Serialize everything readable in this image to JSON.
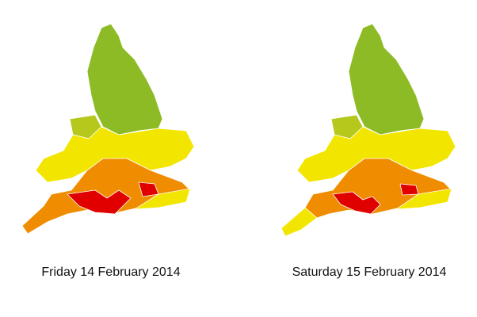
{
  "maps": [
    {
      "caption": "Friday 14 February 2014"
    },
    {
      "caption": "Saturday 15 February 2014"
    }
  ]
}
